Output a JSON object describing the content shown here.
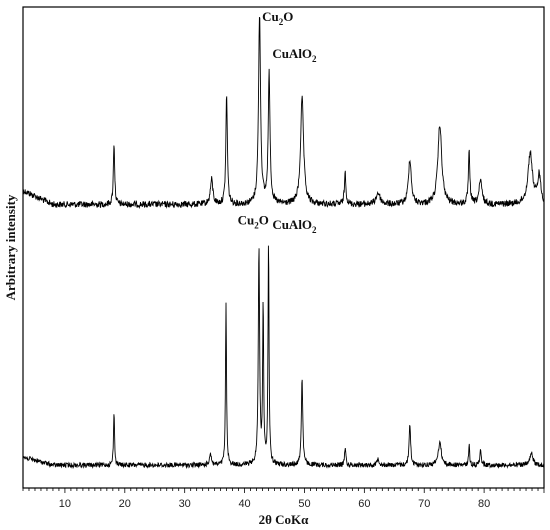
{
  "chart_data": {
    "type": "line",
    "xlabel": "2θ CoKα",
    "ylabel": "Arbitrary intensity",
    "xlim": [
      3,
      90
    ],
    "xticks": [
      10,
      20,
      30,
      40,
      50,
      60,
      70,
      80
    ],
    "grid": false,
    "series": [
      {
        "peaks": [
          {
            "x": 18.2,
            "h": 0.33,
            "w": 0.13
          },
          {
            "x": 34.5,
            "h": 0.13,
            "w": 0.25
          },
          {
            "x": 37.0,
            "h": 0.58,
            "w": 0.15
          },
          {
            "x": 42.5,
            "h": 1.0,
            "w": 0.2
          },
          {
            "x": 44.1,
            "h": 0.68,
            "w": 0.18
          },
          {
            "x": 49.6,
            "h": 0.56,
            "w": 0.3
          },
          {
            "x": 56.8,
            "h": 0.17,
            "w": 0.15
          },
          {
            "x": 62.3,
            "h": 0.06,
            "w": 0.4
          },
          {
            "x": 67.6,
            "h": 0.24,
            "w": 0.28
          },
          {
            "x": 72.6,
            "h": 0.42,
            "w": 0.38
          },
          {
            "x": 77.5,
            "h": 0.27,
            "w": 0.15
          },
          {
            "x": 79.4,
            "h": 0.12,
            "w": 0.3
          },
          {
            "x": 87.7,
            "h": 0.27,
            "w": 0.45
          },
          {
            "x": 89.2,
            "h": 0.15,
            "w": 0.3
          }
        ],
        "baseline": 0.05
      },
      {
        "peaks": [
          {
            "x": 18.2,
            "h": 0.24,
            "w": 0.1
          },
          {
            "x": 34.3,
            "h": 0.05,
            "w": 0.2
          },
          {
            "x": 36.9,
            "h": 0.7,
            "w": 0.1
          },
          {
            "x": 42.4,
            "h": 0.95,
            "w": 0.13
          },
          {
            "x": 43.1,
            "h": 0.7,
            "w": 0.1
          },
          {
            "x": 44.0,
            "h": 0.97,
            "w": 0.1
          },
          {
            "x": 49.6,
            "h": 0.38,
            "w": 0.14
          },
          {
            "x": 56.8,
            "h": 0.08,
            "w": 0.12
          },
          {
            "x": 62.3,
            "h": 0.03,
            "w": 0.2
          },
          {
            "x": 67.6,
            "h": 0.18,
            "w": 0.15
          },
          {
            "x": 72.6,
            "h": 0.1,
            "w": 0.3
          },
          {
            "x": 77.5,
            "h": 0.09,
            "w": 0.1
          },
          {
            "x": 79.4,
            "h": 0.08,
            "w": 0.12
          },
          {
            "x": 87.9,
            "h": 0.05,
            "w": 0.3
          }
        ],
        "baseline": 0.03
      }
    ],
    "annotations": [
      {
        "text": "Cu",
        "sub": "2",
        "tail": "O",
        "x": 42.6,
        "series": 0,
        "level": 1.0
      },
      {
        "text": "CuAlO",
        "sub": "2",
        "tail": "",
        "x": 44.3,
        "series": 0,
        "level": 0.74
      },
      {
        "text": "Cu",
        "sub": "2",
        "tail": "O",
        "x": 38.5,
        "series": 1,
        "level": 1.02
      },
      {
        "text": "CuAlO",
        "sub": "2",
        "tail": "",
        "x": 44.3,
        "series": 1,
        "level": 1.0
      }
    ]
  }
}
